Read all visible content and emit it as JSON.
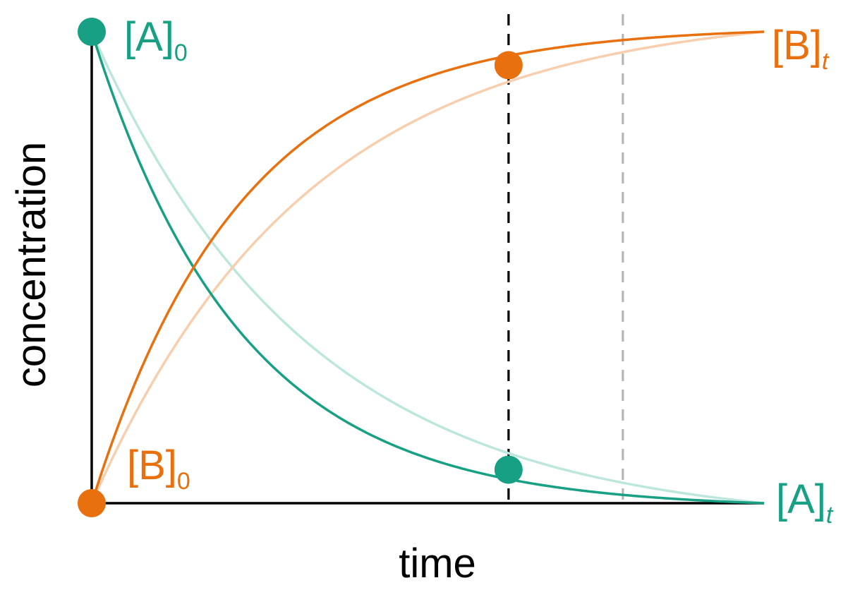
{
  "chart_data": {
    "type": "line",
    "xlabel": "time",
    "ylabel": "concentration",
    "xlim": [
      0,
      1
    ],
    "ylim": [
      0,
      1
    ],
    "grid": false,
    "legend": "none",
    "colors": {
      "A": "#17a083",
      "B": "#e8700f",
      "A_faint": "#bde6dc",
      "B_faint": "#f7cfae",
      "marker_dark": "#000000",
      "marker_light": "#b3b3b3"
    },
    "curves": [
      {
        "id": "A_fast",
        "species": "A",
        "style": "solid",
        "rate": 4.5,
        "kind": "decay"
      },
      {
        "id": "B_fast",
        "species": "B",
        "style": "solid",
        "rate": 4.5,
        "kind": "growth"
      },
      {
        "id": "A_slow",
        "species": "A",
        "style": "faint",
        "rate": 3.1,
        "kind": "decay"
      },
      {
        "id": "B_slow",
        "species": "B",
        "style": "faint",
        "rate": 3.1,
        "kind": "growth"
      }
    ],
    "time_markers": [
      {
        "id": "t_fast",
        "x": 0.62,
        "style": "dark"
      },
      {
        "id": "t_slow",
        "x": 0.79,
        "style": "light"
      }
    ],
    "points": [
      {
        "id": "A0",
        "species": "A",
        "x": 0.0,
        "y": 1.0
      },
      {
        "id": "B0",
        "species": "B",
        "x": 0.0,
        "y": 0.0
      },
      {
        "id": "At_pt",
        "species": "A",
        "x": 0.62,
        "y": 0.071
      },
      {
        "id": "Bt_pt",
        "species": "B",
        "x": 0.62,
        "y": 0.929
      }
    ],
    "annotations": {
      "A0": {
        "base": "[A]",
        "sub": "0"
      },
      "B0": {
        "base": "[B]",
        "sub": "0"
      },
      "At": {
        "base": "[A]",
        "sub": "t"
      },
      "Bt": {
        "base": "[B]",
        "sub": "t"
      }
    }
  }
}
